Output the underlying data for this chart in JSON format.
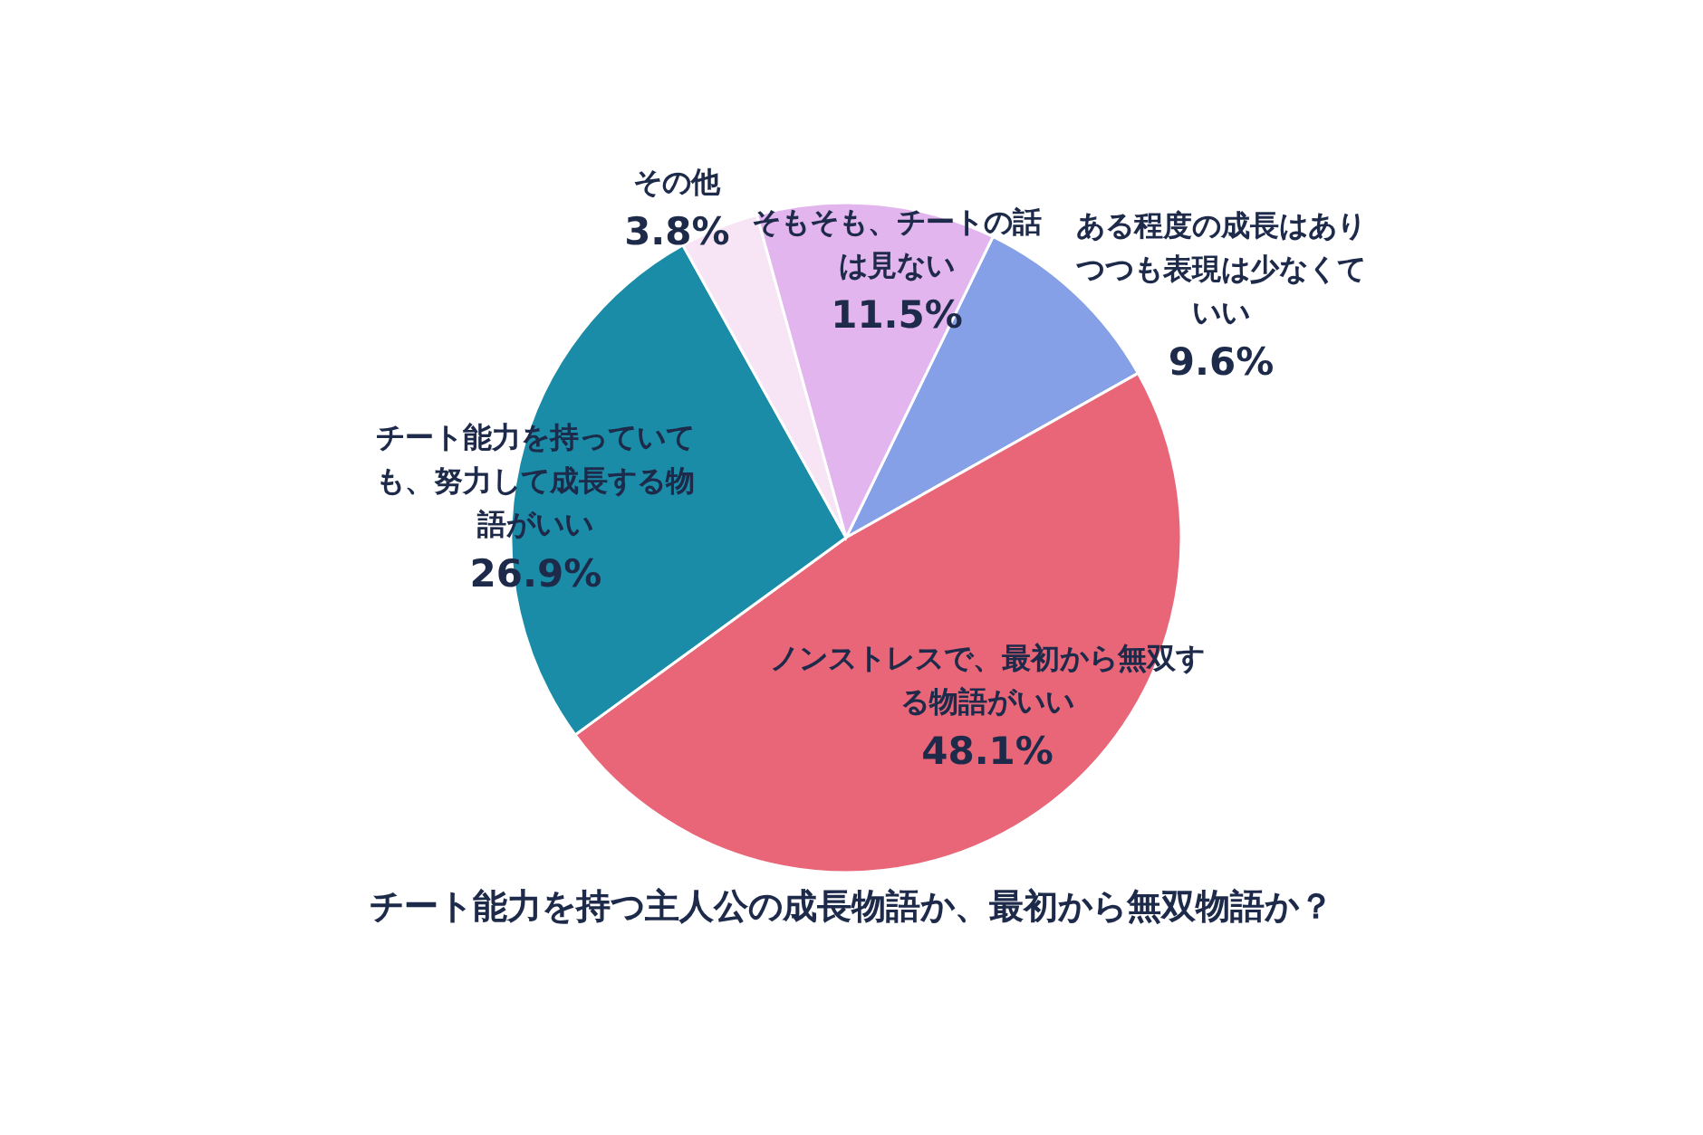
{
  "chart_data": {
    "type": "pie",
    "title": "チート能力を持つ主人公の成長物語か、最初から無双物語か？",
    "categories": [
      "ある程度の成長はありつつも表現は少なくていい",
      "ノンストレスで、最初から無双する物語がいい",
      "チート能力を持っていても、努力して成長する物語がいい",
      "その他",
      "そもそも、チートの話は見ない"
    ],
    "values": [
      9.6,
      48.1,
      26.9,
      3.8,
      11.5
    ],
    "colors": [
      "#86a0e8",
      "#e86678",
      "#1a8ca8",
      "#f7e4f5",
      "#e3b5ee"
    ],
    "value_labels": [
      "9.6%",
      "48.1%",
      "26.9%",
      "3.8%",
      "11.5%"
    ]
  }
}
